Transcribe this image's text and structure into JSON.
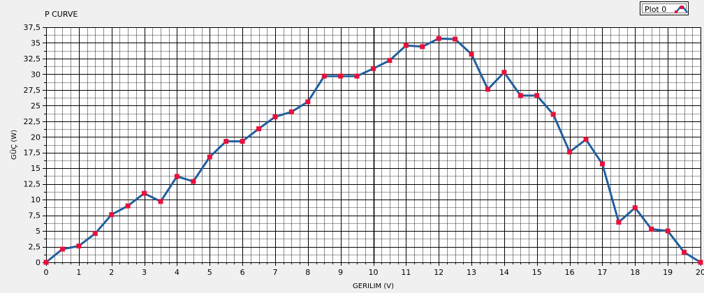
{
  "chart_data": {
    "type": "line",
    "title": "P CURVE",
    "xlabel": "GERILIM (V)",
    "ylabel": "GÜÇ (W)",
    "xlim": [
      0,
      20
    ],
    "ylim": [
      0,
      37.5
    ],
    "x_major_ticks": [
      0,
      1,
      2,
      3,
      4,
      5,
      6,
      7,
      8,
      9,
      10,
      11,
      12,
      13,
      14,
      15,
      16,
      17,
      18,
      19,
      20
    ],
    "x_minor_step": 0.25,
    "y_major_ticks": [
      0,
      2.5,
      5,
      7.5,
      10,
      12.5,
      15,
      17.5,
      20,
      22.5,
      25,
      27.5,
      30,
      32.5,
      35,
      37.5
    ],
    "y_tick_labels": [
      "0",
      "2,5",
      "5",
      "7,5",
      "10",
      "12,5",
      "15",
      "17,5",
      "20",
      "22,5",
      "25",
      "27,5",
      "30",
      "32,5",
      "35",
      "37,5"
    ],
    "y_minor_step": 1.25,
    "highlight_gridline_x": 10,
    "legend": {
      "position": "top-right",
      "entries": [
        "Plot 0"
      ]
    },
    "series": [
      {
        "name": "Plot 0",
        "line_color": "#1f5f9e",
        "marker_color": "#e8113a",
        "marker": "square",
        "x": [
          0,
          0.5,
          1,
          1.5,
          2,
          2.5,
          3,
          3.5,
          4,
          4.5,
          5,
          5.5,
          6,
          6.5,
          7,
          7.5,
          8,
          8.5,
          9,
          9.5,
          10,
          10.5,
          11,
          11.5,
          12,
          12.5,
          13,
          13.5,
          14,
          14.5,
          15,
          15.5,
          16,
          16.5,
          17,
          17.5,
          18,
          18.5,
          19,
          19.5,
          20
        ],
        "y": [
          0,
          2.1,
          2.6,
          4.6,
          7.6,
          9.0,
          11.0,
          9.7,
          13.7,
          12.9,
          16.8,
          19.3,
          19.3,
          21.3,
          23.2,
          24.0,
          25.6,
          29.7,
          29.7,
          29.7,
          30.9,
          32.2,
          34.6,
          34.4,
          35.7,
          35.6,
          33.2,
          27.6,
          30.3,
          26.6,
          26.6,
          23.6,
          17.6,
          19.6,
          15.7,
          6.4,
          8.7,
          5.3,
          5.0,
          1.6,
          0
        ]
      }
    ]
  }
}
